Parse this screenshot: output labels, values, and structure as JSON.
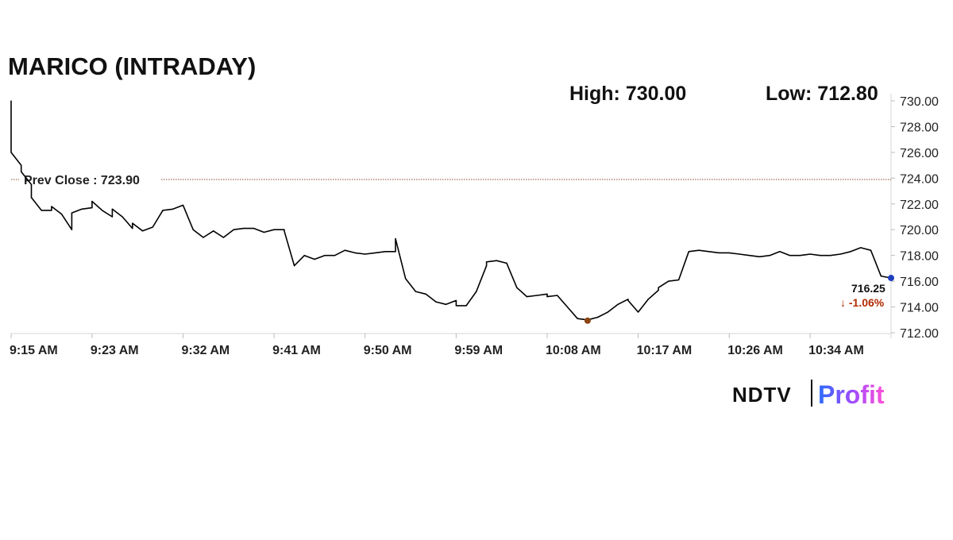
{
  "chart_data": {
    "type": "line",
    "title": "MARICO (INTRADAY)",
    "high_label": "High: 730.00",
    "low_label": "Low: 712.80",
    "prev_close_label": "Prev Close : 723.90",
    "prev_close": 723.9,
    "last_price_label": "716.25",
    "change_label": "↓ -1.06%",
    "ylim": [
      712,
      730
    ],
    "yticks": [
      "712.00",
      "714.00",
      "716.00",
      "718.00",
      "720.00",
      "722.00",
      "724.00",
      "726.00",
      "728.00",
      "730.00"
    ],
    "xticks": [
      "9:15 AM",
      "9:23 AM",
      "9:32 AM",
      "9:41 AM",
      "9:50 AM",
      "9:59 AM",
      "10:08 AM",
      "10:17 AM",
      "10:26 AM",
      "10:34 AM"
    ],
    "xlim": [
      "9:15",
      "10:42"
    ],
    "grid": false,
    "series": [
      {
        "color": "#000000",
        "x": [
          "9:15",
          "9:15",
          "9:16",
          "9:16",
          "9:17",
          "9:17",
          "9:18",
          "9:19",
          "9:19",
          "9:20",
          "9:21",
          "9:21",
          "9:22",
          "9:23",
          "9:23",
          "9:24",
          "9:25",
          "9:25",
          "9:26",
          "9:27",
          "9:27",
          "9:28",
          "9:29",
          "9:30",
          "9:31",
          "9:32",
          "9:33",
          "9:34",
          "9:35",
          "9:36",
          "9:36",
          "9:37",
          "9:38",
          "9:39",
          "9:40",
          "9:41",
          "9:42",
          "9:42",
          "9:43",
          "9:44",
          "9:45",
          "9:46",
          "9:47",
          "9:48",
          "9:49",
          "9:50",
          "9:51",
          "9:52",
          "9:53",
          "9:53",
          "9:54",
          "9:55",
          "9:56",
          "9:57",
          "9:58",
          "9:59",
          "9:59",
          "10:00",
          "10:01",
          "10:02",
          "10:02",
          "10:03",
          "10:04",
          "10:05",
          "10:06",
          "10:07",
          "10:08",
          "10:08",
          "10:09",
          "10:10",
          "10:11",
          "10:12",
          "10:13",
          "10:14",
          "10:15",
          "10:16",
          "10:16",
          "10:17",
          "10:18",
          "10:19",
          "10:19",
          "10:20",
          "10:21",
          "10:22",
          "10:23",
          "10:24",
          "10:25",
          "10:26",
          "10:27",
          "10:28",
          "10:29",
          "10:30",
          "10:31",
          "10:32",
          "10:33",
          "10:34",
          "10:35",
          "10:36",
          "10:37",
          "10:38",
          "10:39",
          "10:40",
          "10:41",
          "10:42"
        ],
        "y": [
          730.0,
          726.0,
          725.0,
          724.5,
          723.5,
          722.5,
          721.5,
          721.5,
          721.8,
          721.2,
          720.0,
          721.3,
          721.6,
          721.7,
          722.2,
          721.5,
          721.0,
          721.6,
          721.0,
          720.1,
          720.5,
          719.9,
          720.2,
          721.5,
          721.6,
          721.9,
          720.0,
          719.4,
          719.9,
          719.4,
          719.4,
          720.0,
          720.1,
          720.1,
          719.8,
          720.0,
          720.0,
          719.9,
          717.2,
          718.0,
          717.7,
          718.0,
          718.0,
          718.4,
          718.2,
          718.1,
          718.2,
          718.3,
          718.3,
          719.3,
          716.2,
          715.2,
          715.0,
          714.4,
          714.2,
          714.5,
          714.1,
          714.1,
          715.2,
          717.2,
          717.5,
          717.6,
          717.4,
          715.5,
          714.8,
          714.9,
          715.0,
          714.8,
          714.9,
          714.0,
          713.1,
          713.0,
          713.2,
          713.6,
          714.2,
          714.6,
          714.5,
          713.6,
          714.6,
          715.3,
          715.5,
          716.0,
          716.1,
          718.3,
          718.4,
          718.3,
          718.2,
          718.2,
          718.1,
          718.0,
          717.9,
          718.0,
          718.3,
          718.0,
          718.0,
          718.1,
          718.0,
          718.0,
          718.1,
          718.3,
          718.6,
          718.4,
          716.4,
          716.25
        ]
      }
    ],
    "high_marker_color": "#8b4513",
    "last_marker_color": "#1f3fbf",
    "change_color": "#b12a00"
  },
  "logo": {
    "ndtv": "NDTV",
    "profit": "Profit"
  }
}
